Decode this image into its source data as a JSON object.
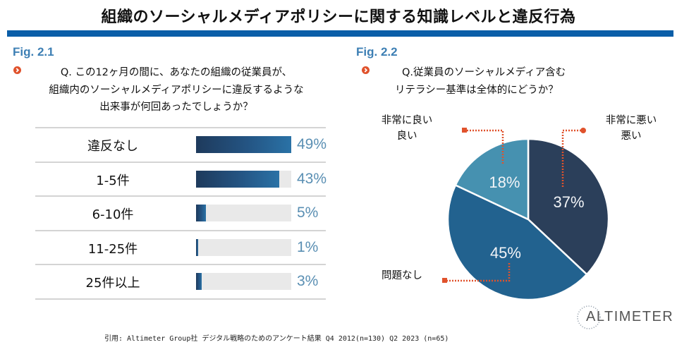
{
  "title": "組織のソーシャルメディアポリシーに関する知識レベルと違反行為",
  "fig1": {
    "label": "Fig. 2.1",
    "icon": "orange-chevron-circle-icon",
    "question_lines": [
      "Q. この12ヶ月の間に、あなたの組織の従業員が、",
      "組織内のソーシャルメディアポリシーに違反するような",
      "出来事が何回あったでしょうか？"
    ]
  },
  "fig2": {
    "label": "Fig. 2.2",
    "icon": "orange-chevron-circle-icon",
    "question_lines": [
      "Q.従業員のソーシャルメディア含む",
      "リテラシー基準は全体的にどうか？"
    ],
    "callouts": {
      "good": [
        "非常に良い",
        "良い"
      ],
      "bad": [
        "非常に悪い",
        "悪い"
      ],
      "none": [
        "問題なし"
      ]
    }
  },
  "chart_data": [
    {
      "type": "bar",
      "orientation": "horizontal",
      "title": "Fig. 2.1",
      "categories": [
        "違反なし",
        "1-5件",
        "6-10件",
        "11-25件",
        "25件以上"
      ],
      "values": [
        49,
        43,
        5,
        1,
        3
      ],
      "value_labels": [
        "49%",
        "43%",
        "5%",
        "1%",
        "3%"
      ],
      "unit": "%",
      "xlim": [
        0,
        49
      ],
      "colors": {
        "bar": "#245584",
        "track": "#e9e9e9",
        "label": "#5a8fb3"
      }
    },
    {
      "type": "pie",
      "title": "Fig. 2.2",
      "slices": [
        {
          "name": "非常に悪い/悪い",
          "value": 37,
          "label": "37%",
          "color": "#2b3f5a"
        },
        {
          "name": "問題なし",
          "value": 45,
          "label": "45%",
          "color": "#22628f"
        },
        {
          "name": "非常に良い/良い",
          "value": 18,
          "label": "18%",
          "color": "#4691b0"
        }
      ],
      "start": "top",
      "direction": "clockwise",
      "callout_color": "#e0522c"
    }
  ],
  "footer": "引用: Altimeter Group社 デジタル戦略のためのアンケート結果 Q4 2012(n=130) Q2 2023 (n=65)",
  "logo": {
    "text": "ALTIMETER",
    "icon": "altimeter-dotted-circle-icon"
  }
}
